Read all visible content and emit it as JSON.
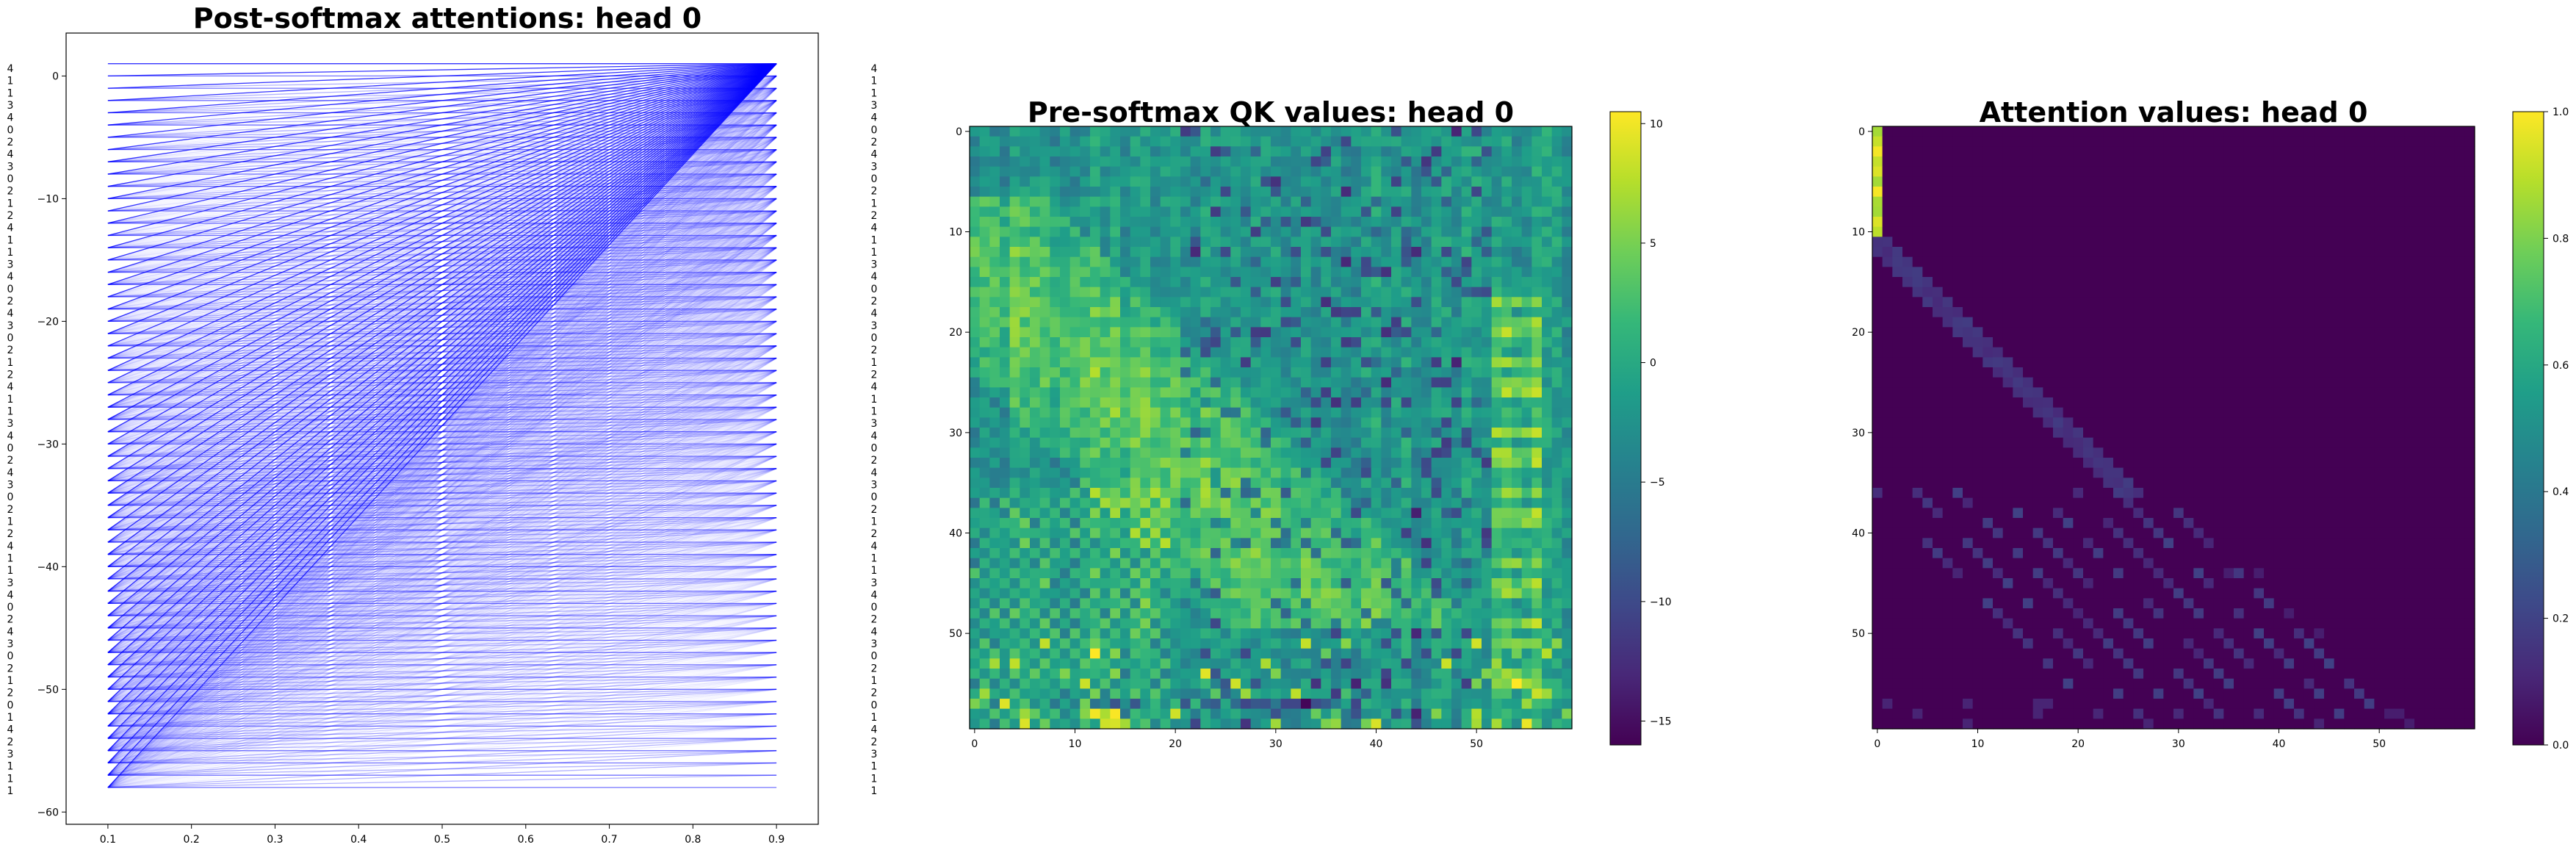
{
  "chart_data": [
    {
      "type": "line",
      "title": "Post-softmax attentions: head 0",
      "xlabel": "",
      "ylabel": "",
      "xlim": [
        0.05,
        0.95
      ],
      "ylim": [
        -61,
        3.5
      ],
      "x_ticks": [
        0.1,
        0.2,
        0.3,
        0.4,
        0.5,
        0.6,
        0.7,
        0.8,
        0.9
      ],
      "y_ticks": [
        0,
        -10,
        -20,
        -30,
        -40,
        -50,
        -60
      ],
      "left_x": 0.1,
      "right_x": 0.9,
      "tokens": [
        "4",
        "1",
        "1",
        "3",
        "4",
        "0",
        "2",
        "4",
        "3",
        "0",
        "2",
        "1",
        "2",
        "4",
        "1",
        "1",
        "3",
        "4",
        "0",
        "2",
        "4",
        "3",
        "0",
        "2",
        "1",
        "2",
        "4",
        "1",
        "1",
        "3",
        "4",
        "0",
        "2",
        "4",
        "3",
        "0",
        "2",
        "1",
        "2",
        "4",
        "1",
        "1",
        "3",
        "4",
        "0",
        "2",
        "4",
        "3",
        "0",
        "2",
        "1",
        "2",
        "0",
        "1",
        "4",
        "2",
        "3",
        "1",
        "1",
        "1"
      ],
      "line_color": "#0000ff"
    },
    {
      "type": "heatmap",
      "title": "Pre-softmax QK values: head 0",
      "size": 60,
      "x_ticks": [
        0,
        10,
        20,
        30,
        40,
        50
      ],
      "y_ticks": [
        0,
        10,
        20,
        30,
        40,
        50
      ],
      "colorbar_ticks": [
        10,
        5,
        0,
        -5,
        -10,
        -15
      ],
      "vmin": -16,
      "vmax": 10.5,
      "colormap": "viridis"
    },
    {
      "type": "heatmap",
      "title": "Attention values: head 0",
      "size": 60,
      "x_ticks": [
        0,
        10,
        20,
        30,
        40,
        50
      ],
      "y_ticks": [
        0,
        10,
        20,
        30,
        40,
        50
      ],
      "colorbar_ticks": [
        1.0,
        0.8,
        0.6,
        0.4,
        0.2,
        0.0
      ],
      "colorbar_tick_labels": [
        "1.0",
        "0.8",
        "0.6",
        "0.4",
        "0.2",
        "0.0"
      ],
      "vmin": 0,
      "vmax": 1,
      "colormap": "viridis"
    }
  ]
}
